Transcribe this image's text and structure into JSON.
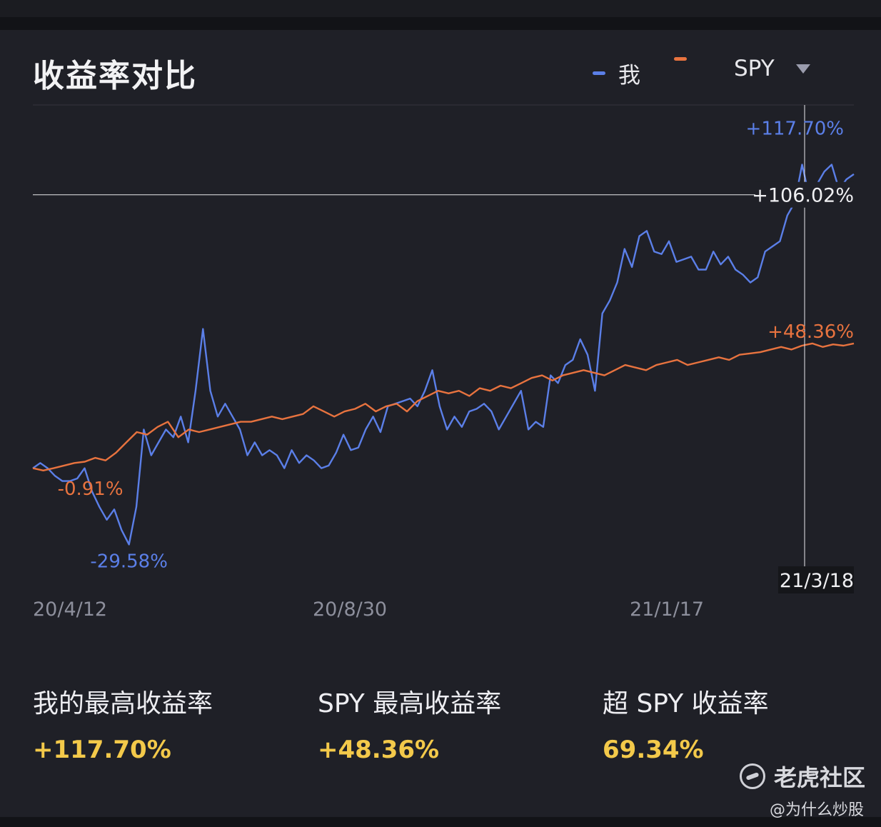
{
  "header": {
    "title": "收益率对比"
  },
  "legend": {
    "items": [
      {
        "name": "我",
        "color": "#5b7fe8"
      },
      {
        "name": "",
        "color": "#e8733f"
      }
    ],
    "benchmark_selector": "SPY"
  },
  "chart_data": {
    "type": "line",
    "x_ticks": [
      "20/4/12",
      "20/8/30",
      "21/1/17"
    ],
    "ylim": [
      -40,
      140
    ],
    "grid": false,
    "series": [
      {
        "name": "我",
        "color": "#5b7fe8",
        "values": [
          0,
          2,
          0,
          -3,
          -5,
          -5,
          -4,
          0,
          -9,
          -15,
          -20,
          -16,
          -24,
          -29.58,
          -15,
          15,
          5,
          10,
          15,
          12,
          20,
          10,
          30,
          54,
          30,
          20,
          25,
          20,
          15,
          5,
          10,
          5,
          7,
          5,
          0,
          7,
          2,
          5,
          3,
          0,
          1,
          6,
          13,
          7,
          8,
          15,
          20,
          14,
          24,
          25,
          26,
          27,
          24,
          30,
          38,
          24,
          15,
          20,
          16,
          22,
          23,
          25,
          22,
          15,
          20,
          25,
          30,
          15,
          18,
          16,
          36,
          33,
          40,
          42,
          50,
          44,
          30,
          60,
          65,
          72,
          85,
          78,
          90,
          92,
          84,
          83,
          88,
          80,
          81,
          82,
          77,
          77,
          84,
          79,
          82,
          77,
          75,
          72,
          74,
          84,
          86,
          88,
          98,
          103,
          117.7,
          105,
          110,
          115,
          117.7,
          108,
          112,
          114
        ]
      },
      {
        "name": "",
        "color": "#e8733f",
        "values": [
          0,
          -0.91,
          0,
          1,
          2,
          2.5,
          4,
          3,
          6,
          10,
          14,
          13,
          16,
          18,
          12,
          15,
          14,
          15,
          16,
          17,
          18,
          18,
          19,
          20,
          19,
          20,
          21,
          24,
          22,
          20,
          22,
          23,
          25,
          22,
          24,
          25,
          22,
          26,
          28,
          30,
          29,
          30,
          28,
          31,
          30,
          32,
          31,
          33,
          35,
          36,
          34,
          36,
          37,
          38,
          37,
          36,
          38,
          40,
          39,
          38,
          40,
          41,
          42,
          40,
          41,
          42,
          43,
          42,
          44,
          44.5,
          45,
          46,
          47,
          46,
          47.5,
          48.36,
          47,
          48,
          47.5,
          48.36
        ]
      }
    ],
    "annotations": {
      "blue_max": "+117.70%",
      "blue_min": "-29.58%",
      "orange_min": "-0.91%",
      "orange_max": "+48.36%",
      "crosshair_value": "+106.02%",
      "crosshair_date": "21/3/18",
      "crosshair_y": 106.02,
      "crosshair_index_fraction": 0.94
    }
  },
  "stats": [
    {
      "label": "我的最高收益率",
      "value": "+117.70%"
    },
    {
      "label": "SPY 最高收益率",
      "value": "+48.36%"
    },
    {
      "label": "超 SPY 收益率",
      "value": "69.34%"
    }
  ],
  "watermark": {
    "brand": "老虎社区",
    "handle": "@为什么炒股"
  }
}
